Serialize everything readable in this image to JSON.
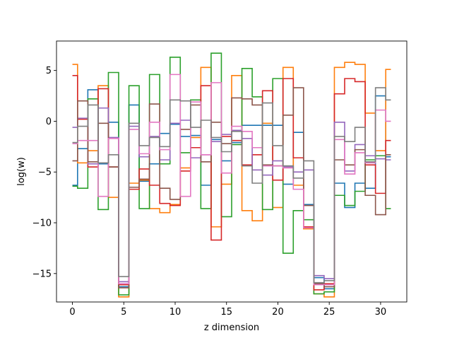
{
  "chart_data": {
    "type": "line",
    "drawstyle": "steps-mid",
    "xlabel": "z dimension",
    "ylabel": "log(w)",
    "xlim": [
      -1.55,
      32.55
    ],
    "ylim": [
      -17.8,
      7.9
    ],
    "xticks": [
      0,
      5,
      10,
      15,
      20,
      25,
      30
    ],
    "yticks": [
      -15,
      -10,
      -5,
      0,
      5
    ],
    "ytick_labels": [
      "−15",
      "−10",
      "−5",
      "0",
      "5"
    ],
    "grid": false,
    "legend": "none",
    "x": [
      0,
      1,
      2,
      3,
      4,
      5,
      6,
      7,
      8,
      9,
      10,
      11,
      12,
      13,
      14,
      15,
      16,
      17,
      18,
      19,
      20,
      21,
      22,
      23,
      24,
      25,
      26,
      27,
      28,
      29,
      30,
      31
    ],
    "series": [
      {
        "color": "#1f77b4",
        "values": [
          -6.3,
          -2.7,
          3.1,
          -4.2,
          -0.1,
          -16.3,
          1.6,
          -5.9,
          -4.2,
          -1.2,
          -0.3,
          -1.5,
          -1.4,
          -6.3,
          -1.8,
          -3.9,
          -2.1,
          -0.4,
          -0.4,
          -0.4,
          -0.4,
          -6.2,
          -1.1,
          -8.2,
          -15.4,
          -16.5,
          -6.1,
          -8.5,
          -6.1,
          -6.6,
          2.5,
          -3.5
        ]
      },
      {
        "color": "#ff7f0e",
        "values": [
          5.6,
          -4.1,
          -2.9,
          3.5,
          -7.5,
          -17.3,
          -6.1,
          -5.8,
          -8.6,
          -9.0,
          -8.2,
          -4.6,
          -1.6,
          5.3,
          -10.4,
          -6.2,
          4.5,
          -8.8,
          -9.8,
          -0.2,
          -8.5,
          5.3,
          -6.3,
          -10.6,
          -17.0,
          -17.3,
          5.3,
          5.8,
          5.6,
          0.8,
          -2.9,
          5.1
        ]
      },
      {
        "color": "#2ca02c",
        "values": [
          -6.4,
          -6.6,
          2.2,
          -8.7,
          4.8,
          -17.1,
          3.5,
          -8.6,
          4.6,
          -4.2,
          6.3,
          -3.1,
          2.1,
          -8.6,
          6.7,
          -9.4,
          -2.3,
          5.2,
          2.4,
          -8.7,
          4.2,
          -13.0,
          -8.8,
          -9.7,
          -17.0,
          -16.8,
          -7.3,
          -8.3,
          -6.9,
          -3.8,
          -3.4,
          -8.6
        ]
      },
      {
        "color": "#d62728",
        "values": [
          4.5,
          0.2,
          -4.5,
          3.2,
          -4.5,
          -16.1,
          -6.7,
          -4.7,
          -6.3,
          -8.1,
          -8.3,
          -4.9,
          -2.6,
          3.5,
          -11.7,
          -1.5,
          -1.9,
          -4.3,
          -3.3,
          3.0,
          -5.8,
          4.2,
          -3.6,
          -10.4,
          -16.6,
          -16.0,
          2.7,
          4.2,
          3.9,
          -4.3,
          -7.1,
          -1.9
        ]
      },
      {
        "color": "#9467bd",
        "values": [
          -0.6,
          0.3,
          -4.2,
          1.3,
          -1.6,
          -15.8,
          -0.5,
          -3.5,
          -1.5,
          -3.8,
          -0.2,
          0.1,
          -3.6,
          -3.3,
          -2.0,
          -1.3,
          -0.9,
          -1.7,
          -4.8,
          -5.3,
          -3.9,
          -4.5,
          -5.0,
          -4.8,
          -15.2,
          -15.5,
          -0.1,
          -4.9,
          -2.3,
          -3.4,
          -3.7,
          -3.8
        ]
      },
      {
        "color": "#8c564b",
        "values": [
          -3.9,
          2.0,
          -4.0,
          -0.2,
          -4.5,
          -16.4,
          -6.5,
          -5.7,
          1.7,
          -6.6,
          -7.7,
          -0.8,
          1.6,
          -4.0,
          -0.1,
          -2.2,
          2.3,
          2.2,
          1.6,
          -4.3,
          -4.4,
          0.6,
          3.3,
          -8.3,
          -16.0,
          -16.3,
          -3.8,
          -4.3,
          -2.8,
          -7.3,
          -9.2,
          -3.3
        ]
      },
      {
        "color": "#e377c2",
        "values": [
          -2.2,
          -1.9,
          -1.9,
          -7.4,
          -1.7,
          -16.0,
          -0.8,
          -3.2,
          -0.1,
          -2.8,
          4.6,
          -7.4,
          1.9,
          -3.3,
          3.8,
          -5.1,
          -0.5,
          -1.0,
          -2.6,
          -4.4,
          -4.4,
          -4.6,
          -6.7,
          -10.5,
          -16.1,
          -16.1,
          -1.8,
          -5.2,
          -3.1,
          -4.1,
          1.1,
          0.0
        ]
      },
      {
        "color": "#7f7f7f",
        "values": [
          -2.1,
          -0.5,
          1.6,
          -4.1,
          -3.3,
          -15.3,
          -0.2,
          -2.4,
          -1.6,
          -2.5,
          2.1,
          2.0,
          -0.6,
          0.1,
          -1.6,
          -3.0,
          -1.0,
          -4.4,
          -6.1,
          1.8,
          -2.4,
          -4.4,
          -5.6,
          -3.9,
          -15.9,
          -15.7,
          -1.5,
          -2.0,
          -0.6,
          -4.0,
          3.3,
          2.1
        ]
      }
    ]
  }
}
